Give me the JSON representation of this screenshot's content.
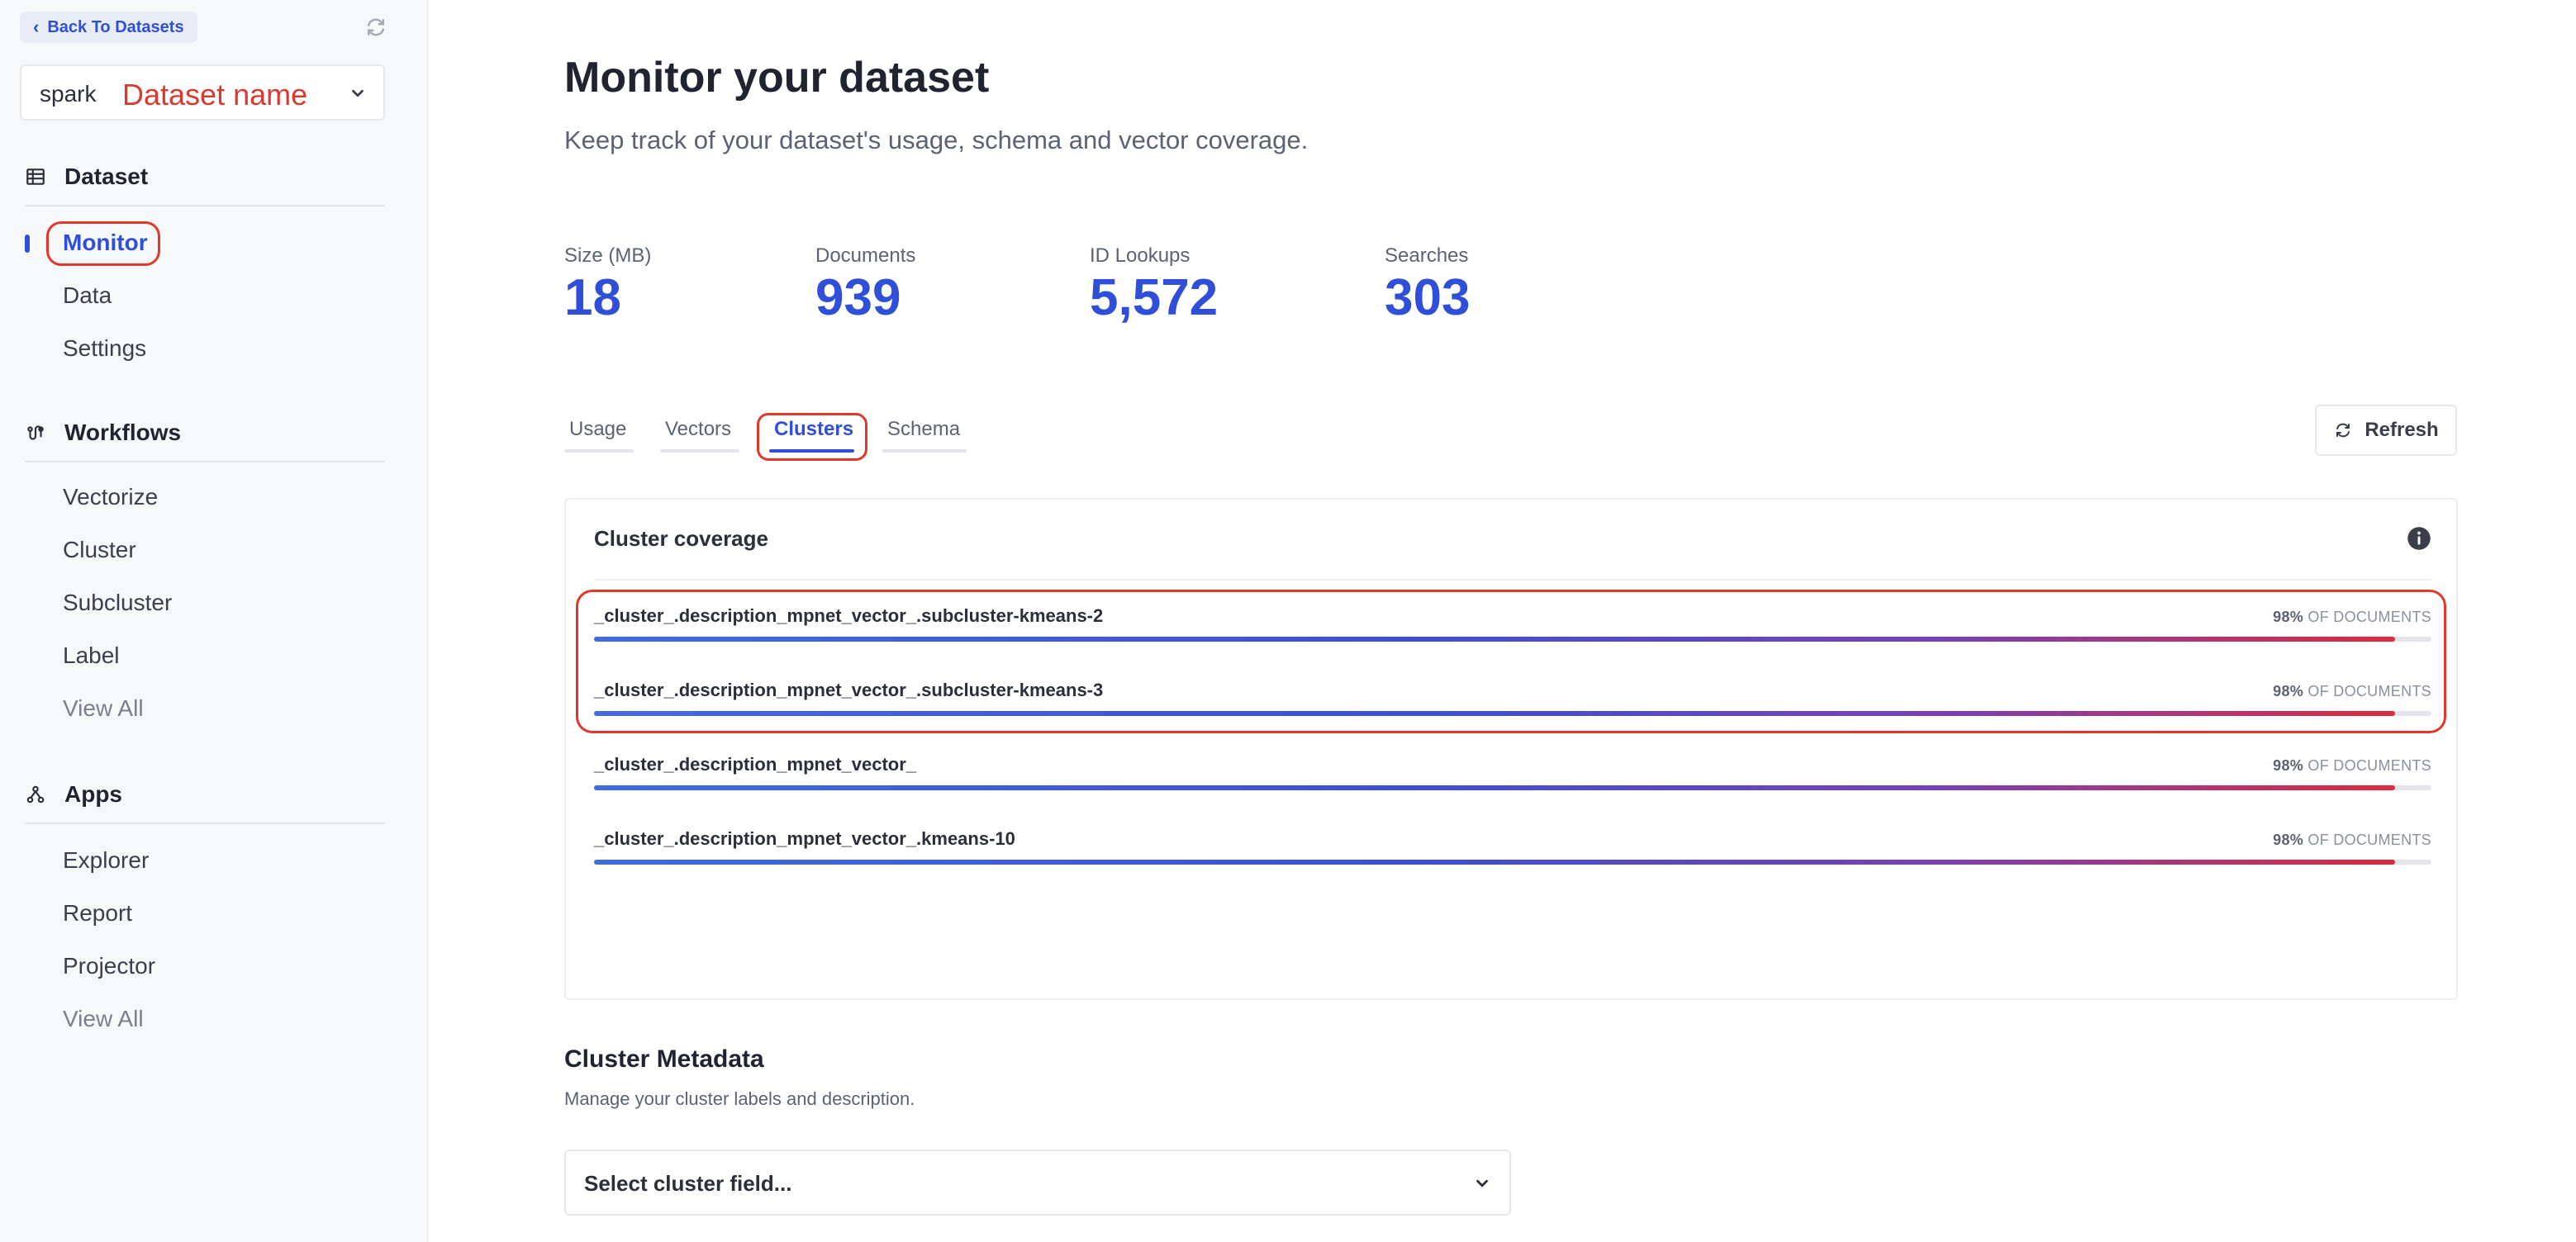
{
  "sidebar": {
    "back_label": "Back To Datasets",
    "dataset_prefix": "spark",
    "dataset_name": "Dataset name",
    "sections": [
      {
        "title": "Dataset",
        "icon": "table-icon",
        "items": [
          "Monitor",
          "Data",
          "Settings"
        ]
      },
      {
        "title": "Workflows",
        "icon": "workflow-icon",
        "items": [
          "Vectorize",
          "Cluster",
          "Subcluster",
          "Label",
          "View All"
        ]
      },
      {
        "title": "Apps",
        "icon": "apps-icon",
        "items": [
          "Explorer",
          "Report",
          "Projector",
          "View All"
        ]
      }
    ],
    "active_item": "Monitor"
  },
  "header": {
    "title": "Monitor your dataset",
    "subtitle": "Keep track of your dataset's usage, schema and vector coverage."
  },
  "stats": [
    {
      "label": "Size (MB)",
      "value": "18"
    },
    {
      "label": "Documents",
      "value": "939"
    },
    {
      "label": "ID Lookups",
      "value": "5,572"
    },
    {
      "label": "Searches",
      "value": "303"
    }
  ],
  "tabs": [
    "Usage",
    "Vectors",
    "Clusters",
    "Schema"
  ],
  "active_tab": "Clusters",
  "refresh_label": "Refresh",
  "coverage": {
    "title": "Cluster coverage",
    "suffix": "OF DOCUMENTS",
    "rows": [
      {
        "field": "_cluster_.description_mpnet_vector_.subcluster-kmeans-2",
        "percent": "98%",
        "coverage": 0.98
      },
      {
        "field": "_cluster_.description_mpnet_vector_.subcluster-kmeans-3",
        "percent": "98%",
        "coverage": 0.98
      },
      {
        "field": "_cluster_.description_mpnet_vector_",
        "percent": "98%",
        "coverage": 0.98
      },
      {
        "field": "_cluster_.description_mpnet_vector_.kmeans-10",
        "percent": "98%",
        "coverage": 0.98
      }
    ]
  },
  "metadata": {
    "title": "Cluster Metadata",
    "subtitle": "Manage your cluster labels and description.",
    "select_placeholder": "Select cluster field..."
  },
  "colors": {
    "accent": "#2f4fd8",
    "annotation": "#e0392b",
    "gradient_end": "#e02a3a"
  }
}
